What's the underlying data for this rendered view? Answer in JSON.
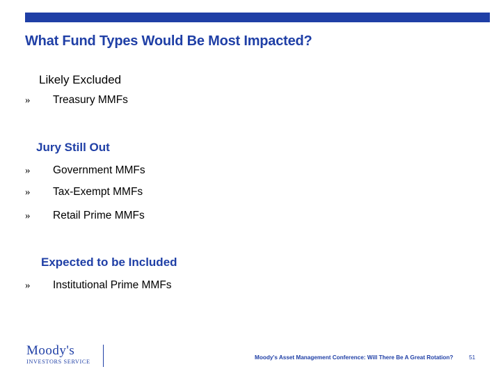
{
  "slide": {
    "title": "What Fund Types Would Be Most Impacted?",
    "colors": {
      "accent": "#1f3fa6",
      "text": "#000000",
      "background": "#ffffff"
    }
  },
  "sections": {
    "excluded": {
      "heading": "Likely Excluded",
      "items": [
        "Treasury MMFs"
      ]
    },
    "jury": {
      "heading": "Jury Still Out",
      "items": [
        "Government MMFs",
        "Tax-Exempt MMFs",
        "Retail Prime MMFs"
      ]
    },
    "included": {
      "heading": "Expected to be Included",
      "items": [
        "Institutional Prime MMFs"
      ]
    }
  },
  "bullet_marker": "»",
  "footer": {
    "logo_text": "Moody's",
    "logo_sub": "INVESTORS SERVICE",
    "caption": "Moody's Asset Management Conference: Will There Be A Great Rotation?",
    "page_number": "51"
  }
}
